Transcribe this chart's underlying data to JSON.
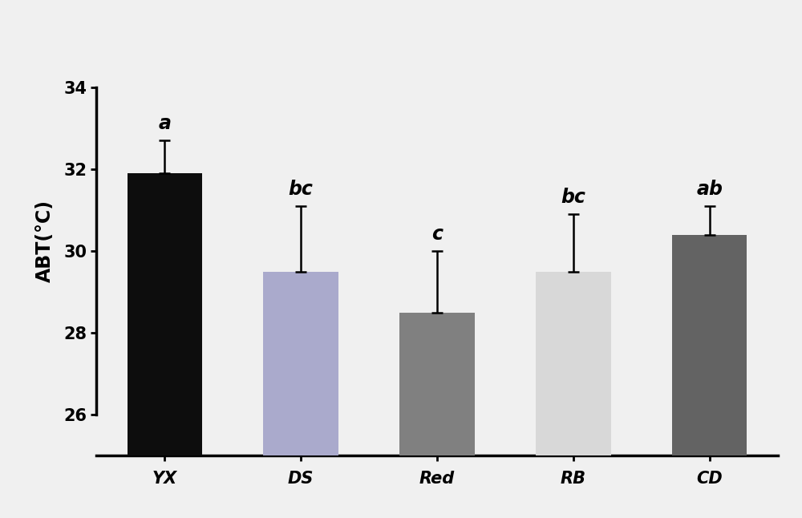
{
  "categories": [
    "YX",
    "DS",
    "Red",
    "RB",
    "CD"
  ],
  "values": [
    31.9,
    29.5,
    28.5,
    29.5,
    30.4
  ],
  "errors": [
    0.8,
    1.6,
    1.5,
    1.4,
    0.7
  ],
  "labels": [
    "a",
    "bc",
    "c",
    "bc",
    "ab"
  ],
  "bar_colors": [
    "#0d0d0d",
    "#aaaacc",
    "#808080",
    "#d8d8d8",
    "#636363"
  ],
  "ylabel": "ABT(°C)",
  "ylim": [
    25.0,
    35.5
  ],
  "yticks": [
    26,
    28,
    30,
    32,
    34
  ],
  "background_color": "#f0f0f0",
  "error_capsize": 5,
  "error_linewidth": 1.8,
  "bar_width": 0.55,
  "tick_fontsize": 15,
  "ylabel_fontsize": 17,
  "annotation_fontsize": 17
}
